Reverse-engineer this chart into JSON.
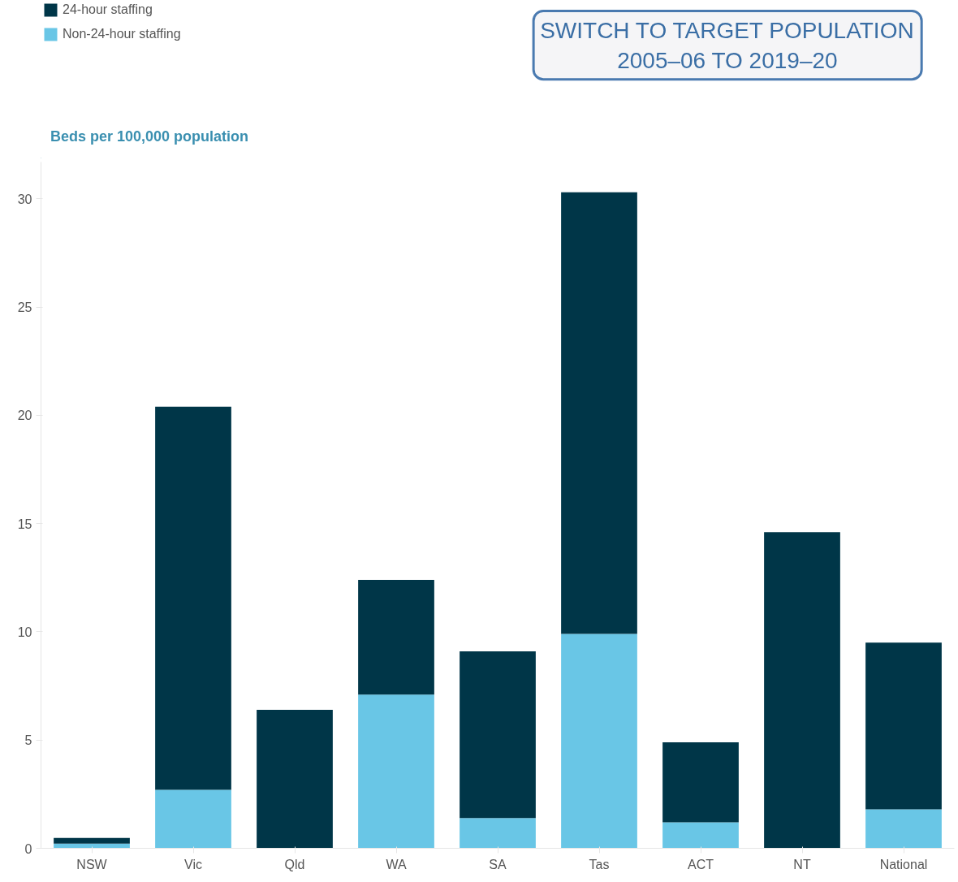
{
  "chart_data": {
    "type": "bar",
    "stacked": true,
    "ylabel": "Beds per 100,000 population",
    "categories": [
      "NSW",
      "Vic",
      "Qld",
      "WA",
      "SA",
      "Tas",
      "ACT",
      "NT",
      "National"
    ],
    "series": [
      {
        "name": "Non-24-hour staffing",
        "color": "#69c6e6",
        "values": [
          0.22,
          2.7,
          0,
          7.1,
          1.4,
          9.9,
          1.2,
          0,
          1.8
        ]
      },
      {
        "name": "24-hour staffing",
        "color": "#003648",
        "values": [
          0.26,
          17.7,
          6.4,
          5.3,
          7.7,
          20.4,
          3.7,
          14.6,
          7.7
        ]
      }
    ],
    "ylim": [
      0,
      31.7
    ],
    "yticks": [
      0,
      5,
      10,
      15,
      20,
      25,
      30
    ],
    "grid": false,
    "legend": "top left",
    "annotations": [
      "SWITCH TO TARGET POPULATION",
      "2005–06 TO 2019–20"
    ]
  }
}
